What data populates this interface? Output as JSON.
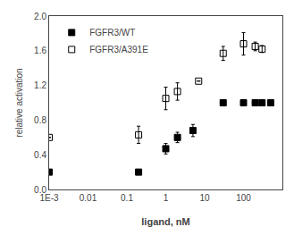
{
  "chart_data": {
    "type": "scatter",
    "xlabel": "ligand, nM",
    "ylabel": "relative activation",
    "log": "x",
    "grid": false,
    "legend": "upper left",
    "xlim": [
      0.001,
      1000
    ],
    "xticks": [
      {
        "value": 0.001,
        "label": "1E-3"
      },
      0.01,
      0.1,
      1,
      10,
      100
    ],
    "ylim": [
      0,
      2.0
    ],
    "yticks": [
      {
        "value": 0,
        "label": "0.0"
      },
      0.4,
      0.8,
      1.2,
      1.6,
      {
        "value": 2.0,
        "label": "2.0"
      }
    ],
    "series": [
      {
        "name": "FGFR3/WT",
        "color": "#000000",
        "marker": "square",
        "x": [
          0.001,
          0.2,
          1.0,
          2.0,
          5.0,
          30.0,
          100.0,
          200.0,
          300.0,
          500.0
        ],
        "values": [
          0.2,
          0.2,
          0.47,
          0.6,
          0.68,
          1.0,
          1.0,
          1.0,
          1.0,
          1.0
        ],
        "errors": [
          0.0,
          0.0,
          0.06,
          0.06,
          0.07,
          0.0,
          0.03,
          0.03,
          0.03,
          0.03
        ]
      },
      {
        "name": "FGFR3/A391E",
        "color": "#000000",
        "marker": "square-open",
        "x": [
          0.001,
          0.2,
          1.0,
          2.0,
          7.0,
          30.0,
          100.0,
          200.0,
          300.0
        ],
        "values": [
          0.6,
          0.63,
          1.05,
          1.13,
          1.25,
          1.57,
          1.68,
          1.65,
          1.62
        ],
        "errors": [
          0.0,
          0.1,
          0.13,
          0.1,
          0.0,
          0.08,
          0.13,
          0.05,
          0.04
        ]
      }
    ]
  }
}
